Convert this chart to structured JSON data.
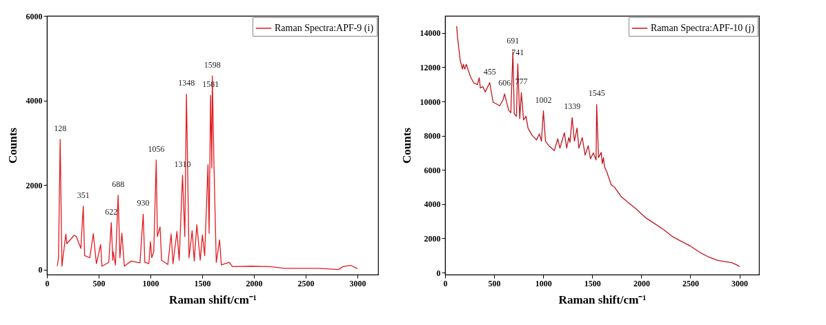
{
  "chart_data": [
    {
      "type": "line",
      "xlabel": "Raman shift/cm⁻¹",
      "ylabel": "Counts",
      "xlim": [
        0,
        3200
      ],
      "xticks": [
        0,
        500,
        1000,
        1500,
        2000,
        2500,
        3000
      ],
      "ylim": [
        -120,
        6000
      ],
      "yticks": [
        0,
        2000,
        4000,
        6000
      ],
      "legend": "top right",
      "series": [
        {
          "name": "Raman Spectra:APF-9 (i)",
          "color": "#e3191f",
          "x": [
            100,
            112,
            128,
            145,
            183,
            192,
            263,
            284,
            328,
            351,
            364,
            414,
            448,
            478,
            519,
            532,
            597,
            622,
            636,
            640,
            662,
            688,
            705,
            724,
            748,
            813,
            899,
            930,
            946,
            985,
            1000,
            1013,
            1032,
            1056,
            1067,
            1093,
            1108,
            1168,
            1200,
            1218,
            1256,
            1278,
            1310,
            1321,
            1332,
            1348,
            1373,
            1403,
            1423,
            1448,
            1481,
            1502,
            1524,
            1556,
            1567,
            1581,
            1593,
            1598,
            1614,
            1636,
            1668,
            1685,
            1761,
            1793,
            1976,
            2149,
            2300,
            2623,
            2817,
            2860,
            2935,
            3000
          ],
          "values": [
            80,
            280,
            3080,
            80,
            840,
            610,
            810,
            780,
            500,
            1500,
            330,
            280,
            850,
            140,
            590,
            80,
            170,
            1110,
            220,
            420,
            110,
            1760,
            280,
            860,
            80,
            200,
            160,
            1310,
            170,
            140,
            660,
            280,
            420,
            2590,
            780,
            1010,
            220,
            120,
            840,
            140,
            900,
            220,
            2230,
            1500,
            780,
            4150,
            280,
            920,
            200,
            1060,
            220,
            820,
            330,
            2480,
            860,
            4120,
            2400,
            4580,
            2450,
            170,
            700,
            110,
            170,
            70,
            80,
            70,
            30,
            30,
            0,
            70,
            100,
            20
          ]
        }
      ],
      "annotations": [
        {
          "text": "128",
          "x": 128,
          "y": 3080
        },
        {
          "text": "351",
          "x": 351,
          "y": 1500
        },
        {
          "text": "622",
          "x": 622,
          "y": 1110
        },
        {
          "text": "688",
          "x": 688,
          "y": 1755
        },
        {
          "text": "930",
          "x": 930,
          "y": 1309
        },
        {
          "text": "1056",
          "x": 1056,
          "y": 2590
        },
        {
          "text": "1310",
          "x": 1310,
          "y": 2228
        },
        {
          "text": "1348",
          "x": 1348,
          "y": 4150
        },
        {
          "text": "1581",
          "x": 1581,
          "y": 4120
        },
        {
          "text": "1598",
          "x": 1598,
          "y": 4580
        }
      ]
    },
    {
      "type": "line",
      "xlabel": "Raman shift/cm⁻¹",
      "ylabel": "Counts",
      "xlim": [
        0,
        3200
      ],
      "xticks": [
        0,
        500,
        1000,
        1500,
        2000,
        2500,
        3000
      ],
      "ylim": [
        -120,
        15000
      ],
      "yticks": [
        0,
        2000,
        4000,
        6000,
        8000,
        10000,
        12000,
        14000
      ],
      "legend": "top right",
      "series": [
        {
          "name": "Raman Spectra:APF-10 (j)",
          "color": "#c0141c",
          "x": [
            118,
            127,
            155,
            177,
            186,
            200,
            216,
            232,
            261,
            295,
            330,
            348,
            359,
            386,
            409,
            455,
            489,
            557,
            591,
            606,
            648,
            670,
            691,
            705,
            727,
            741,
            761,
            777,
            800,
            825,
            845,
            886,
            932,
            961,
            982,
            1002,
            1023,
            1057,
            1114,
            1148,
            1170,
            1216,
            1239,
            1261,
            1273,
            1295,
            1318,
            1345,
            1364,
            1398,
            1427,
            1459,
            1482,
            1511,
            1539,
            1545,
            1564,
            1591,
            1602,
            1614,
            1625,
            1648,
            1664,
            1693,
            1727,
            1795,
            1864,
            1955,
            2045,
            2136,
            2227,
            2318,
            2409,
            2500,
            2591,
            2682,
            2773,
            2841,
            2920,
            2977,
            3000
          ],
          "values": [
            14400,
            13750,
            12370,
            11890,
            12170,
            11890,
            12170,
            11890,
            11410,
            11060,
            10990,
            11380,
            10790,
            10860,
            10550,
            11100,
            9960,
            9750,
            10100,
            10440,
            9480,
            9340,
            12900,
            9270,
            9130,
            12200,
            8990,
            10510,
            8920,
            9130,
            8440,
            8030,
            7750,
            8100,
            7680,
            9450,
            7680,
            7410,
            7130,
            7820,
            7270,
            8170,
            7270,
            7890,
            7610,
            9060,
            7680,
            8440,
            7270,
            7890,
            6860,
            7410,
            6650,
            6990,
            6580,
            9820,
            6720,
            7020,
            6370,
            6720,
            6170,
            5890,
            5610,
            5130,
            4990,
            4440,
            4100,
            3680,
            3200,
            2860,
            2510,
            2100,
            1820,
            1550,
            1200,
            920,
            720,
            650,
            580,
            440,
            350
          ]
        }
      ],
      "annotations": [
        {
          "text": "455",
          "x": 455,
          "y": 11100
        },
        {
          "text": "606",
          "x": 606,
          "y": 10440
        },
        {
          "text": "691",
          "x": 691,
          "y": 12900
        },
        {
          "text": "741",
          "x": 741,
          "y": 12200
        },
        {
          "text": "777",
          "x": 777,
          "y": 10510
        },
        {
          "text": "1002",
          "x": 1002,
          "y": 9450
        },
        {
          "text": "1339",
          "x": 1295,
          "y": 9060
        },
        {
          "text": "1545",
          "x": 1545,
          "y": 9820
        }
      ]
    }
  ]
}
